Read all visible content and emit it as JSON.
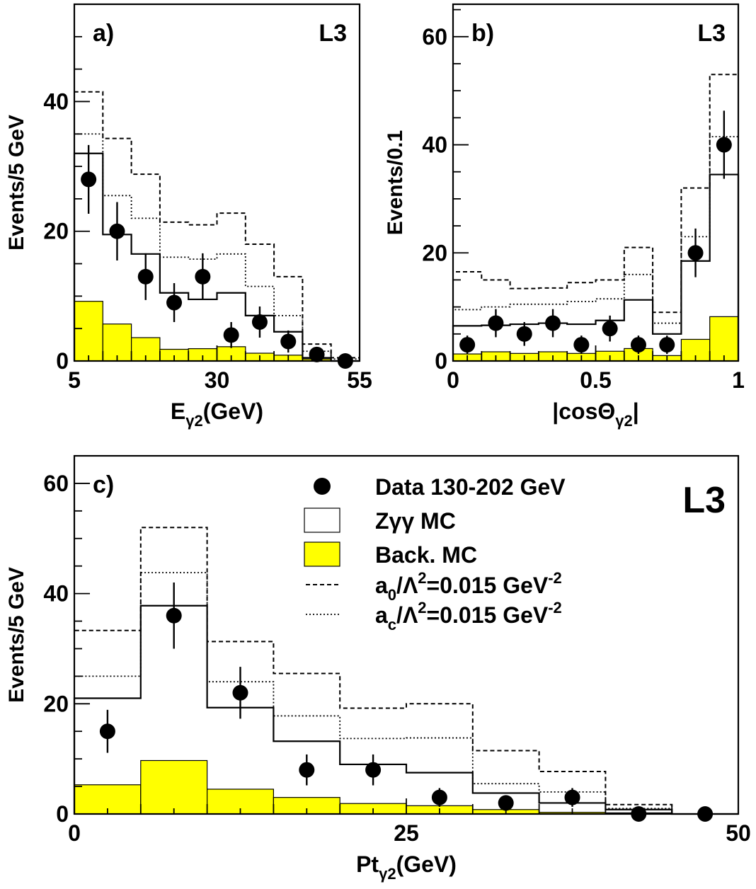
{
  "chart_data": [
    {
      "id": "a",
      "type": "bar",
      "panel_label": "a)",
      "logo": "L3",
      "xlabel": "E",
      "xlabel_sub": "γ2",
      "xlabel_unit": "(GeV)",
      "ylabel": "Events/5 GeV",
      "xlim": [
        5,
        55
      ],
      "ylim": [
        0,
        55
      ],
      "xticks": [
        5,
        30,
        55
      ],
      "yticks": [
        0,
        20,
        40
      ],
      "bin_edges": [
        5,
        10,
        15,
        20,
        25,
        30,
        35,
        40,
        45,
        50,
        55
      ],
      "series": [
        {
          "name": "Data 130-202 GeV",
          "style": "points",
          "x": [
            7.5,
            12.5,
            17.5,
            22.5,
            27.5,
            32.5,
            37.5,
            42.5,
            47.5,
            52.5
          ],
          "values": [
            28,
            20,
            13,
            9,
            13,
            4,
            6,
            3,
            1,
            0
          ],
          "errors": [
            5.3,
            4.5,
            3.6,
            3.0,
            3.6,
            2.0,
            2.4,
            1.7,
            1.0,
            0
          ]
        },
        {
          "name": "Zγγ MC",
          "style": "step-solid",
          "values": [
            32,
            19.5,
            16.5,
            10.5,
            9.5,
            10.5,
            7,
            4.5,
            0.5,
            0
          ]
        },
        {
          "name": "Back. MC",
          "style": "filled",
          "values": [
            9.2,
            5.7,
            3.6,
            1.8,
            1.9,
            2.2,
            1.2,
            0.9,
            0.3,
            0
          ]
        },
        {
          "name": "a0/Λ2=0.015 GeV-2",
          "style": "step-dashed",
          "values": [
            41.5,
            34.3,
            28.8,
            21.4,
            21,
            22.8,
            18,
            13,
            2.6,
            0.5
          ]
        },
        {
          "name": "ac/Λ2=0.015 GeV-2",
          "style": "step-dotted",
          "values": [
            35,
            25.5,
            22,
            16,
            15.7,
            16.5,
            11.5,
            7,
            1.5,
            0.3
          ]
        }
      ]
    },
    {
      "id": "b",
      "type": "bar",
      "panel_label": "b)",
      "logo": "L3",
      "xlabel": "|cosΘ",
      "xlabel_sub": "γ2",
      "xlabel_unit": "|",
      "ylabel": "Events/0.1",
      "xlim": [
        0,
        1
      ],
      "ylim": [
        0,
        66
      ],
      "xticks": [
        0,
        0.5,
        1
      ],
      "yticks": [
        0,
        20,
        40,
        60
      ],
      "bin_edges": [
        0,
        0.1,
        0.2,
        0.3,
        0.4,
        0.5,
        0.6,
        0.7,
        0.8,
        0.9,
        1.0
      ],
      "series": [
        {
          "name": "Data 130-202 GeV",
          "style": "points",
          "x": [
            0.05,
            0.15,
            0.25,
            0.35,
            0.45,
            0.55,
            0.65,
            0.75,
            0.85,
            0.95
          ],
          "values": [
            3,
            7,
            5,
            7,
            3,
            6,
            3,
            3,
            20,
            40
          ],
          "errors": [
            1.7,
            2.6,
            2.2,
            2.6,
            1.7,
            2.4,
            1.7,
            1.7,
            4.5,
            6.3
          ]
        },
        {
          "name": "Zγγ MC",
          "style": "step-solid",
          "values": [
            6.5,
            6.6,
            6.8,
            7,
            6.8,
            7.5,
            11.3,
            5,
            18.5,
            34.5
          ]
        },
        {
          "name": "Back. MC",
          "style": "filled",
          "values": [
            1.3,
            1.7,
            1.4,
            1.7,
            1.4,
            1.8,
            2.3,
            1,
            4,
            8.2
          ]
        },
        {
          "name": "a0/Λ2=0.015 GeV-2",
          "style": "step-dashed",
          "values": [
            16.5,
            15,
            13.4,
            13.5,
            14.5,
            15,
            21,
            9,
            32,
            53
          ]
        },
        {
          "name": "ac/Λ2=0.015 GeV-2",
          "style": "step-dotted",
          "values": [
            9.5,
            10,
            10.5,
            10.5,
            11,
            11.5,
            16,
            7,
            23,
            41.5
          ]
        }
      ]
    },
    {
      "id": "c",
      "type": "bar",
      "panel_label": "c)",
      "logo": "L3",
      "xlabel": "Pt",
      "xlabel_sub": "γ2",
      "xlabel_unit": "(GeV)",
      "ylabel": "Events/5 GeV",
      "xlim": [
        0,
        50
      ],
      "ylim": [
        0,
        65
      ],
      "xticks": [
        0,
        25,
        50
      ],
      "yticks": [
        0,
        20,
        40,
        60
      ],
      "bin_edges": [
        0,
        5,
        10,
        15,
        20,
        25,
        30,
        35,
        40,
        45,
        50
      ],
      "series": [
        {
          "name": "Data 130-202 GeV",
          "style": "points",
          "x": [
            2.5,
            7.5,
            12.5,
            17.5,
            22.5,
            27.5,
            32.5,
            37.5,
            42.5,
            47.5
          ],
          "values": [
            15,
            36,
            22,
            8,
            8,
            3,
            2,
            3,
            0,
            0
          ],
          "errors": [
            3.9,
            6,
            4.7,
            2.8,
            2.8,
            1.7,
            1.4,
            1.7,
            0,
            0
          ]
        },
        {
          "name": "Zγγ MC",
          "style": "step-solid",
          "values": [
            21,
            37.8,
            19.3,
            13.2,
            9,
            7.5,
            3.8,
            2,
            0.8,
            0
          ]
        },
        {
          "name": "Back. MC",
          "style": "filled",
          "values": [
            5.3,
            9.7,
            4.5,
            3,
            1.9,
            1.5,
            0.8,
            0.3,
            0.2,
            0
          ]
        },
        {
          "name": "a0/Λ2=0.015 GeV-2",
          "style": "step-dashed",
          "values": [
            33.3,
            52,
            31.3,
            25.5,
            19.2,
            20,
            11.5,
            7.7,
            1.7,
            0
          ]
        },
        {
          "name": "ac/Λ2=0.015 GeV-2",
          "style": "step-dotted",
          "values": [
            25,
            43.8,
            24,
            17.8,
            13.7,
            13.8,
            5.5,
            4,
            1,
            0
          ]
        }
      ],
      "legend": [
        {
          "marker": "dot",
          "text": "Data 130-202 GeV"
        },
        {
          "marker": "open-box",
          "text": "Zγγ MC"
        },
        {
          "marker": "yellow-box",
          "text": "Back. MC"
        },
        {
          "marker": "dashed-line",
          "text": "a",
          "sub": "0",
          "mid": "/Λ",
          "sup1": "2",
          "tail": "=0.015 GeV",
          "sup2": "-2"
        },
        {
          "marker": "dotted-line",
          "text": "a",
          "sub": "c",
          "mid": "/Λ",
          "sup1": "2",
          "tail": "=0.015 GeV",
          "sup2": "-2"
        }
      ],
      "legend_position": "top-right"
    }
  ],
  "colors": {
    "background_fill": "#ffff00",
    "frame": "#000000",
    "text": "#000000"
  }
}
